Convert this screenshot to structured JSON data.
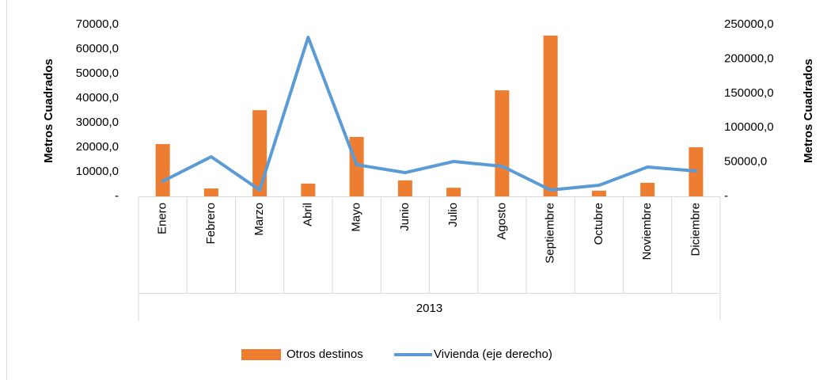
{
  "chart_data": {
    "type": "bar_line",
    "categories": [
      "Enero",
      "Febrero",
      "Marzo",
      "Abril",
      "Mayo",
      "Junio",
      "Julio",
      "Agosto",
      "Septiembre",
      "Octubre",
      "Noviembre",
      "Diciembre"
    ],
    "group_label": "2013",
    "series": [
      {
        "name": "Otros destinos",
        "type": "bar",
        "color": "#ed7d31",
        "values": [
          21300,
          3200,
          35100,
          5200,
          24200,
          6500,
          3500,
          43200,
          65500,
          2300,
          5500,
          20000
        ]
      },
      {
        "name": "Vivienda (eje derecho)",
        "type": "line",
        "axis": "y2",
        "color": "#5b9bd5",
        "values": [
          21900,
          57600,
          9200,
          231500,
          46000,
          34500,
          50700,
          43800,
          9200,
          16100,
          42600,
          36900
        ]
      }
    ],
    "ylabel": "Metros Cuadrados",
    "y2label": "Metros Cuadrados",
    "ylim": [
      0,
      70000
    ],
    "yticks": [
      {
        "value": 0,
        "label": "-"
      },
      {
        "value": 10000,
        "label": "10000,0"
      },
      {
        "value": 20000,
        "label": "20000,0"
      },
      {
        "value": 30000,
        "label": "30000,0"
      },
      {
        "value": 40000,
        "label": "40000,0"
      },
      {
        "value": 50000,
        "label": "50000,0"
      },
      {
        "value": 60000,
        "label": "60000,0"
      },
      {
        "value": 70000,
        "label": "70000,0"
      }
    ],
    "y2lim": [
      0,
      250000
    ],
    "y2ticks": [
      {
        "value": 0,
        "label": "-"
      },
      {
        "value": 50000,
        "label": "50000,0"
      },
      {
        "value": 100000,
        "label": "100000,0"
      },
      {
        "value": 150000,
        "label": "150000,0"
      },
      {
        "value": 200000,
        "label": "200000,0"
      },
      {
        "value": 250000,
        "label": "250000,0"
      }
    ],
    "legend": "bottom"
  }
}
